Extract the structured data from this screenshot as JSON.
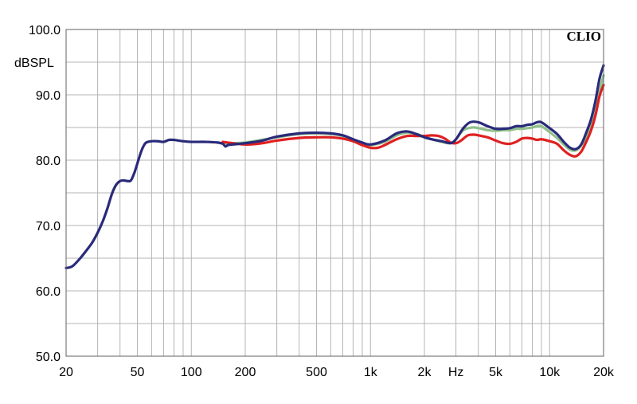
{
  "chart_data": {
    "type": "line",
    "brand": "CLIO",
    "ylabel": "dBSPL",
    "x_scale": "log",
    "xlim": [
      20,
      20000
    ],
    "ylim": [
      50,
      100
    ],
    "grid": true,
    "x_ticks": [
      {
        "value": 20,
        "label": "20"
      },
      {
        "value": 50,
        "label": "50"
      },
      {
        "value": 100,
        "label": "100"
      },
      {
        "value": 200,
        "label": "200"
      },
      {
        "value": 500,
        "label": "500"
      },
      {
        "value": 1000,
        "label": "1k"
      },
      {
        "value": 2000,
        "label": "2k"
      },
      {
        "value": 3000,
        "label": "Hz"
      },
      {
        "value": 5000,
        "label": "5k"
      },
      {
        "value": 10000,
        "label": "10k"
      },
      {
        "value": 20000,
        "label": "20k"
      }
    ],
    "y_ticks": [
      {
        "value": 100,
        "label": "100.0"
      },
      {
        "value": 90,
        "label": "90.0"
      },
      {
        "value": 80,
        "label": "80.0"
      },
      {
        "value": 70,
        "label": "70.0"
      },
      {
        "value": 60,
        "label": "60.0"
      },
      {
        "value": 50,
        "label": "50.0"
      }
    ],
    "series": [
      {
        "color": "#8fc08a",
        "points": [
          [
            150,
            82.6
          ],
          [
            200,
            82.7
          ],
          [
            300,
            83.5
          ],
          [
            400,
            84.0
          ],
          [
            500,
            84.1
          ],
          [
            600,
            84.0
          ],
          [
            700,
            83.7
          ],
          [
            800,
            83.0
          ],
          [
            900,
            82.5
          ],
          [
            1000,
            82.3
          ],
          [
            1200,
            82.8
          ],
          [
            1400,
            83.8
          ],
          [
            1600,
            84.2
          ],
          [
            1800,
            84.0
          ],
          [
            2000,
            83.6
          ],
          [
            2200,
            83.2
          ],
          [
            2500,
            82.8
          ],
          [
            2800,
            82.6
          ],
          [
            3000,
            83.2
          ],
          [
            3300,
            84.6
          ],
          [
            3700,
            85.0
          ],
          [
            4000,
            84.9
          ],
          [
            4500,
            84.6
          ],
          [
            5000,
            84.5
          ],
          [
            5500,
            84.6
          ],
          [
            6000,
            84.6
          ],
          [
            6500,
            84.8
          ],
          [
            7000,
            84.8
          ],
          [
            7500,
            84.9
          ],
          [
            8000,
            85.0
          ],
          [
            8500,
            85.2
          ],
          [
            9000,
            85.2
          ],
          [
            10000,
            84.3
          ],
          [
            11000,
            83.4
          ],
          [
            12000,
            82.4
          ],
          [
            13000,
            81.6
          ],
          [
            14000,
            81.5
          ],
          [
            15000,
            82.2
          ],
          [
            16000,
            83.6
          ],
          [
            17000,
            85.3
          ],
          [
            18000,
            87.5
          ],
          [
            19000,
            90.5
          ],
          [
            20000,
            93.0
          ]
        ]
      },
      {
        "color": "#e02020",
        "points": [
          [
            150,
            82.8
          ],
          [
            200,
            82.4
          ],
          [
            250,
            82.6
          ],
          [
            300,
            83.0
          ],
          [
            400,
            83.4
          ],
          [
            500,
            83.5
          ],
          [
            600,
            83.5
          ],
          [
            700,
            83.3
          ],
          [
            800,
            82.9
          ],
          [
            900,
            82.3
          ],
          [
            1000,
            81.9
          ],
          [
            1100,
            81.9
          ],
          [
            1200,
            82.3
          ],
          [
            1400,
            83.2
          ],
          [
            1600,
            83.7
          ],
          [
            1800,
            83.7
          ],
          [
            2000,
            83.7
          ],
          [
            2200,
            83.8
          ],
          [
            2400,
            83.7
          ],
          [
            2600,
            83.3
          ],
          [
            2800,
            82.7
          ],
          [
            3000,
            82.6
          ],
          [
            3200,
            83.0
          ],
          [
            3500,
            83.8
          ],
          [
            3800,
            83.9
          ],
          [
            4000,
            83.8
          ],
          [
            4500,
            83.5
          ],
          [
            5000,
            83.0
          ],
          [
            5500,
            82.6
          ],
          [
            6000,
            82.5
          ],
          [
            6500,
            82.8
          ],
          [
            7000,
            83.3
          ],
          [
            7500,
            83.4
          ],
          [
            8000,
            83.3
          ],
          [
            8500,
            83.1
          ],
          [
            9000,
            83.2
          ],
          [
            10000,
            82.9
          ],
          [
            11000,
            82.5
          ],
          [
            12000,
            81.5
          ],
          [
            13000,
            80.8
          ],
          [
            14000,
            80.6
          ],
          [
            15000,
            81.3
          ],
          [
            16000,
            82.8
          ],
          [
            17000,
            84.5
          ],
          [
            18000,
            86.8
          ],
          [
            19000,
            89.8
          ],
          [
            20000,
            91.5
          ]
        ]
      },
      {
        "color": "#2a2a7a",
        "points": [
          [
            20,
            63.5
          ],
          [
            21,
            63.6
          ],
          [
            22,
            63.9
          ],
          [
            24,
            65.0
          ],
          [
            26,
            66.2
          ],
          [
            28,
            67.4
          ],
          [
            30,
            68.9
          ],
          [
            32,
            70.6
          ],
          [
            34,
            72.6
          ],
          [
            36,
            74.8
          ],
          [
            38,
            76.2
          ],
          [
            40,
            76.8
          ],
          [
            42,
            76.9
          ],
          [
            44,
            76.8
          ],
          [
            46,
            76.9
          ],
          [
            48,
            78.0
          ],
          [
            50,
            79.5
          ],
          [
            52,
            81.0
          ],
          [
            54,
            82.1
          ],
          [
            56,
            82.7
          ],
          [
            60,
            82.9
          ],
          [
            65,
            82.9
          ],
          [
            70,
            82.8
          ],
          [
            75,
            83.1
          ],
          [
            80,
            83.1
          ],
          [
            90,
            82.9
          ],
          [
            100,
            82.8
          ],
          [
            120,
            82.8
          ],
          [
            140,
            82.7
          ],
          [
            150,
            82.5
          ],
          [
            155,
            82.1
          ],
          [
            160,
            82.3
          ],
          [
            170,
            82.4
          ],
          [
            200,
            82.6
          ],
          [
            250,
            83.0
          ],
          [
            300,
            83.6
          ],
          [
            400,
            84.1
          ],
          [
            500,
            84.2
          ],
          [
            600,
            84.1
          ],
          [
            700,
            83.8
          ],
          [
            800,
            83.2
          ],
          [
            900,
            82.7
          ],
          [
            1000,
            82.4
          ],
          [
            1200,
            83.0
          ],
          [
            1400,
            84.1
          ],
          [
            1600,
            84.4
          ],
          [
            1800,
            84.0
          ],
          [
            2000,
            83.5
          ],
          [
            2200,
            83.2
          ],
          [
            2500,
            82.9
          ],
          [
            2800,
            82.6
          ],
          [
            3000,
            83.2
          ],
          [
            3300,
            84.9
          ],
          [
            3600,
            85.8
          ],
          [
            4000,
            85.8
          ],
          [
            4500,
            85.2
          ],
          [
            5000,
            84.8
          ],
          [
            5500,
            84.8
          ],
          [
            6000,
            84.9
          ],
          [
            6500,
            85.2
          ],
          [
            7000,
            85.2
          ],
          [
            7500,
            85.4
          ],
          [
            8000,
            85.5
          ],
          [
            8500,
            85.8
          ],
          [
            9000,
            85.8
          ],
          [
            10000,
            84.9
          ],
          [
            11000,
            84.0
          ],
          [
            12000,
            82.8
          ],
          [
            13000,
            81.9
          ],
          [
            14000,
            81.7
          ],
          [
            15000,
            82.4
          ],
          [
            16000,
            84.2
          ],
          [
            17000,
            86.2
          ],
          [
            18000,
            89.0
          ],
          [
            19000,
            92.5
          ],
          [
            20000,
            94.5
          ]
        ]
      }
    ]
  }
}
